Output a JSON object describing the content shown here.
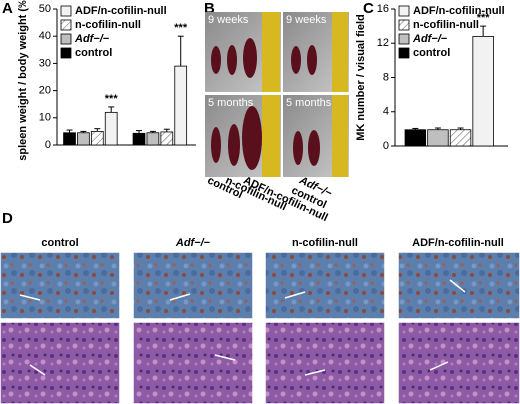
{
  "panel_labels": [
    "A",
    "B",
    "C",
    "D"
  ],
  "chart_data": [
    {
      "type": "bar",
      "ylabel": "spleen weight / body weight (‰)",
      "categories": [
        null,
        null
      ],
      "series": [
        {
          "name": "ADF/n-cofilin-null",
          "color": "#f2f2f2",
          "values": [
            12,
            29
          ],
          "errors": [
            2,
            11
          ],
          "annotations": [
            "***",
            "***"
          ]
        },
        {
          "name": "n-cofilin-null",
          "color": "#ffffff",
          "hatch": true,
          "values": [
            5,
            4.8
          ],
          "errors": [
            1,
            1
          ]
        },
        {
          "name": "Adf−/−",
          "color": "#bfbfbf",
          "values": [
            4.5,
            4.5
          ],
          "errors": [
            0.5,
            0.5
          ]
        },
        {
          "name": "control",
          "color": "#000000",
          "values": [
            4.5,
            4.3
          ],
          "errors": [
            1,
            1
          ]
        }
      ],
      "ylim": [
        0,
        50
      ],
      "yticks": [
        0,
        10,
        20,
        30,
        40,
        50
      ]
    },
    {
      "type": "bar",
      "ylabel": "MK number / visual field",
      "categories": [
        null
      ],
      "series": [
        {
          "name": "ADF/n-cofilin-null",
          "color": "#f2f2f2",
          "values": [
            12.8
          ],
          "errors": [
            1.2
          ],
          "annotations": [
            "***"
          ]
        },
        {
          "name": "n-cofilin-null",
          "color": "#ffffff",
          "hatch": true,
          "values": [
            1.9
          ],
          "errors": [
            0.2
          ]
        },
        {
          "name": "Adf−/−",
          "color": "#bfbfbf",
          "values": [
            1.9
          ],
          "errors": [
            0.2
          ]
        },
        {
          "name": "control",
          "color": "#000000",
          "values": [
            1.9
          ],
          "errors": [
            0.15
          ]
        }
      ],
      "ylim": [
        0,
        16
      ],
      "yticks": [
        0,
        4,
        8,
        12,
        16
      ]
    }
  ],
  "photos": {
    "ages": [
      "9 weeks",
      "9 weeks",
      "5 months",
      "5 months"
    ],
    "strains": [
      "control",
      "n-cofilin-null",
      "ADF/n-cofilin-null",
      "Adf−/−",
      "control"
    ]
  },
  "histology": {
    "columns": [
      "control",
      "Adf−/−",
      "n-cofilin-null",
      "ADF/n-cofilin-null"
    ]
  }
}
